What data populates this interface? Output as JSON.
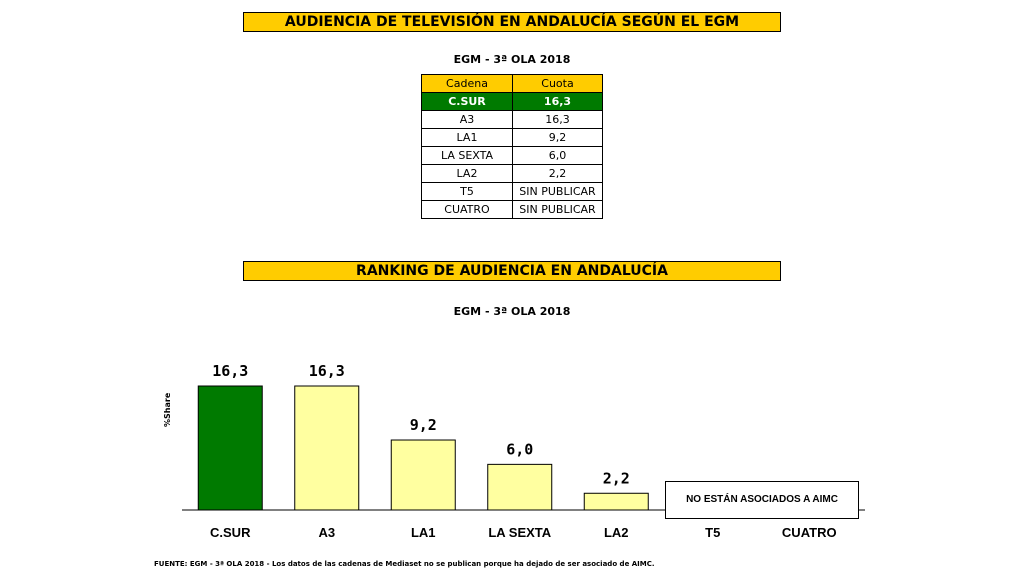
{
  "title1": "AUDIENCIA DE TELEVISIÓN EN ANDALUCÍA SEGÚN EL EGM",
  "subtitle1": "EGM - 3ª OLA 2018",
  "table": {
    "headers": [
      "Cadena",
      "Cuota"
    ],
    "rows": [
      [
        "C.SUR",
        "16,3"
      ],
      [
        "A3",
        "16,3"
      ],
      [
        "LA1",
        "9,2"
      ],
      [
        "LA SEXTA",
        "6,0"
      ],
      [
        "LA2",
        "2,2"
      ],
      [
        "T5",
        "SIN PUBLICAR"
      ],
      [
        "CUATRO",
        "SIN PUBLICAR"
      ]
    ]
  },
  "title2": "RANKING DE AUDIENCIA EN ANDALUCÍA",
  "subtitle2": "EGM - 3ª OLA 2018",
  "note": "NO ESTÁN ASOCIADOS A AIMC",
  "footer": "FUENTE:  EGM - 3ª OLA 2018 - Los datos de las cadenas de Mediaset no se publican porque ha dejado de ser asociado de AIMC.",
  "colors": {
    "highlight": "#007A00",
    "bar": "#FFFFA0",
    "banner": "#FFCC00"
  },
  "chart_data": {
    "type": "bar",
    "title": "RANKING DE AUDIENCIA EN ANDALUCÍA",
    "subtitle": "EGM - 3ª OLA 2018",
    "xlabel": "",
    "ylabel": "%Share",
    "categories": [
      "C.SUR",
      "A3",
      "LA1",
      "LA SEXTA",
      "LA2",
      "T5",
      "CUATRO"
    ],
    "values": [
      16.3,
      16.3,
      9.2,
      6.0,
      2.2,
      null,
      null
    ],
    "data_labels": [
      "16,3",
      "16,3",
      "9,2",
      "6,0",
      "2,2",
      "",
      ""
    ],
    "highlight_index": 0,
    "ylim": [
      0,
      18
    ],
    "grid": false
  }
}
